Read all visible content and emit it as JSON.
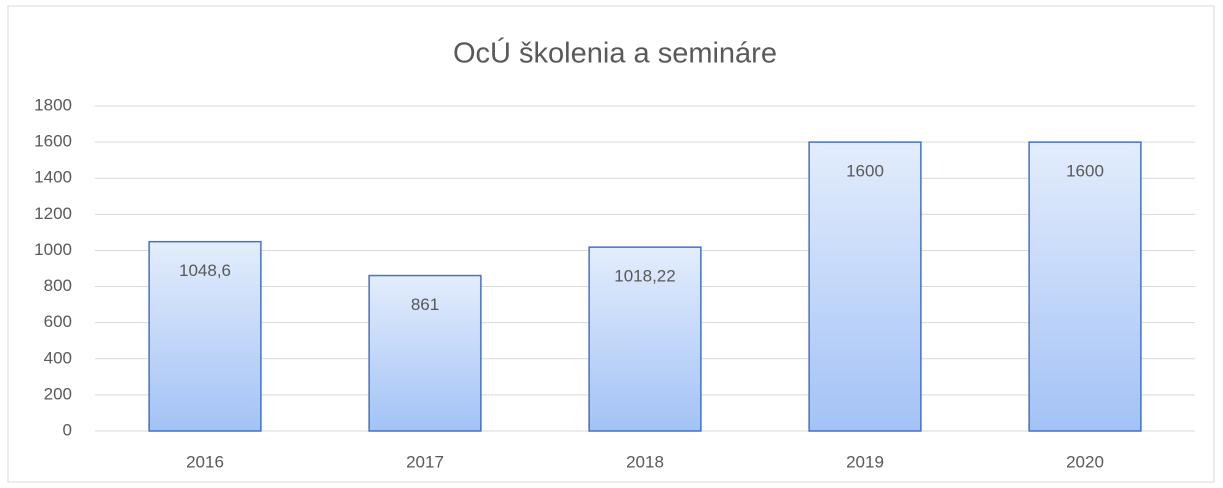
{
  "chart_data": {
    "type": "bar",
    "title": "OcÚ školenia a semináre",
    "categories": [
      "2016",
      "2017",
      "2018",
      "2019",
      "2020"
    ],
    "values": [
      1048.6,
      861,
      1018.22,
      1600,
      1600
    ],
    "value_labels": [
      "1048,6",
      "861",
      "1018,22",
      "1600",
      "1600"
    ],
    "color": "#a3c2f6",
    "ylim": [
      0,
      1800
    ],
    "yticks": [
      0,
      200,
      400,
      600,
      800,
      1000,
      1200,
      1400,
      1600,
      1800
    ],
    "grid": true
  }
}
